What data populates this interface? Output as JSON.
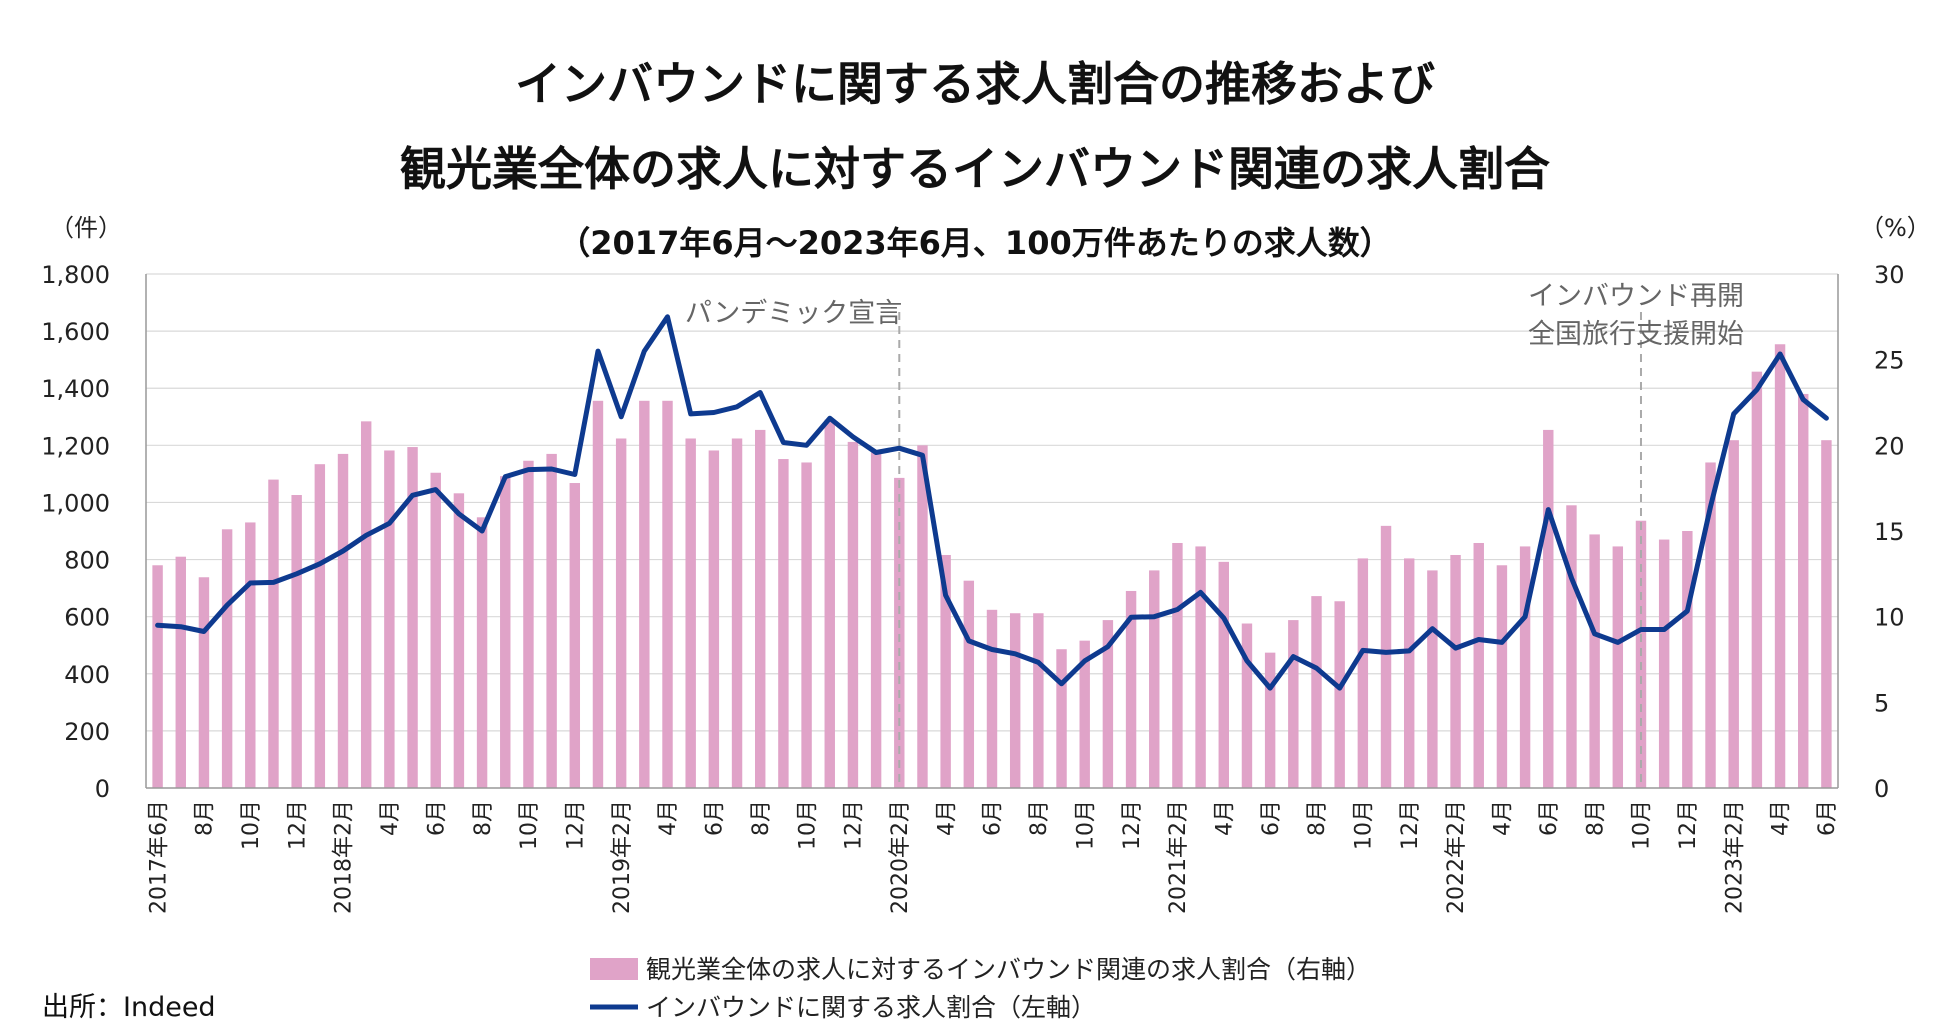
{
  "chart_data": {
    "type": "bar+line",
    "title": "インバウンドに関する求人割合の推移および",
    "subtitle": "観光業全体の求人に対するインバウンド関連の求人割合",
    "caption": "（2017年6月～2023年6月、100万件あたりの求人数）",
    "left_axis_unit": "（件）",
    "right_axis_unit": "（%）",
    "left_ylim": [
      0,
      1800
    ],
    "left_ticks": [
      "0",
      "200",
      "400",
      "600",
      "800",
      "1,000",
      "1,200",
      "1,400",
      "1,600",
      "1,800"
    ],
    "right_ylim": [
      0,
      30
    ],
    "right_ticks": [
      "0",
      "5",
      "10",
      "15",
      "20",
      "25",
      "30"
    ],
    "x_ticks": [
      {
        "i": 0,
        "label": "2017年6月"
      },
      {
        "i": 2,
        "label": "8月"
      },
      {
        "i": 4,
        "label": "10月"
      },
      {
        "i": 6,
        "label": "12月"
      },
      {
        "i": 8,
        "label": "2018年2月"
      },
      {
        "i": 10,
        "label": "4月"
      },
      {
        "i": 12,
        "label": "6月"
      },
      {
        "i": 14,
        "label": "8月"
      },
      {
        "i": 16,
        "label": "10月"
      },
      {
        "i": 18,
        "label": "12月"
      },
      {
        "i": 20,
        "label": "2019年2月"
      },
      {
        "i": 22,
        "label": "4月"
      },
      {
        "i": 24,
        "label": "6月"
      },
      {
        "i": 26,
        "label": "8月"
      },
      {
        "i": 28,
        "label": "10月"
      },
      {
        "i": 30,
        "label": "12月"
      },
      {
        "i": 32,
        "label": "2020年2月"
      },
      {
        "i": 34,
        "label": "4月"
      },
      {
        "i": 36,
        "label": "6月"
      },
      {
        "i": 38,
        "label": "8月"
      },
      {
        "i": 40,
        "label": "10月"
      },
      {
        "i": 42,
        "label": "12月"
      },
      {
        "i": 44,
        "label": "2021年2月"
      },
      {
        "i": 46,
        "label": "4月"
      },
      {
        "i": 48,
        "label": "6月"
      },
      {
        "i": 50,
        "label": "8月"
      },
      {
        "i": 52,
        "label": "10月"
      },
      {
        "i": 54,
        "label": "12月"
      },
      {
        "i": 56,
        "label": "2022年2月"
      },
      {
        "i": 58,
        "label": "4月"
      },
      {
        "i": 60,
        "label": "6月"
      },
      {
        "i": 62,
        "label": "8月"
      },
      {
        "i": 64,
        "label": "10月"
      },
      {
        "i": 66,
        "label": "12月"
      },
      {
        "i": 68,
        "label": "2023年2月"
      },
      {
        "i": 70,
        "label": "4月"
      },
      {
        "i": 72,
        "label": "6月"
      }
    ],
    "series": [
      {
        "name": "観光業全体の求人に対するインバウンド関連の求人割合（右軸）",
        "type": "bar",
        "axis": "right",
        "color": "#E0A3C8",
        "values": [
          13.0,
          13.5,
          12.3,
          15.1,
          15.5,
          18.0,
          17.1,
          18.9,
          19.5,
          21.4,
          19.7,
          19.9,
          18.4,
          17.2,
          15.8,
          18.2,
          19.1,
          19.5,
          17.8,
          22.6,
          20.4,
          22.6,
          22.6,
          20.4,
          19.7,
          20.4,
          20.9,
          19.2,
          19.0,
          21.5,
          20.2,
          19.6,
          18.1,
          20.0,
          13.6,
          12.1,
          10.4,
          10.2,
          10.2,
          8.1,
          8.6,
          9.8,
          11.5,
          12.7,
          14.3,
          14.1,
          13.2,
          9.6,
          7.9,
          9.8,
          11.2,
          10.9,
          13.4,
          15.3,
          13.4,
          12.7,
          13.6,
          14.3,
          13.0,
          14.1,
          20.9,
          16.5,
          14.8,
          14.1,
          15.6,
          14.5,
          15.0,
          19.0,
          20.3,
          24.3,
          25.9,
          23.0,
          20.3
        ]
      },
      {
        "name": "インバウンドに関する求人割合（左軸）",
        "type": "line",
        "axis": "left",
        "color": "#0E3A8F",
        "values": [
          570,
          565,
          548,
          640,
          718,
          720,
          750,
          785,
          830,
          885,
          927,
          1025,
          1045,
          960,
          900,
          1090,
          1115,
          1117,
          1098,
          1530,
          1300,
          1530,
          1650,
          1310,
          1315,
          1335,
          1385,
          1210,
          1200,
          1295,
          1230,
          1175,
          1190,
          1165,
          675,
          515,
          485,
          470,
          440,
          365,
          445,
          495,
          598,
          600,
          625,
          685,
          595,
          445,
          350,
          460,
          420,
          350,
          482,
          475,
          480,
          558,
          490,
          520,
          510,
          600,
          975,
          735,
          540,
          510,
          555,
          555,
          620,
          985,
          1310,
          1395,
          1520,
          1360,
          1295
        ]
      }
    ],
    "annotations": [
      {
        "i": 32,
        "text": "パンデミック宣言"
      },
      {
        "i": 64,
        "lines": [
          "インバウンド再開",
          "全国旅行支援開始"
        ]
      }
    ],
    "legend": [
      "観光業全体の求人に対するインバウンド関連の求人割合（右軸）",
      "インバウンドに関する求人割合（左軸）"
    ],
    "source": "出所：Indeed"
  }
}
